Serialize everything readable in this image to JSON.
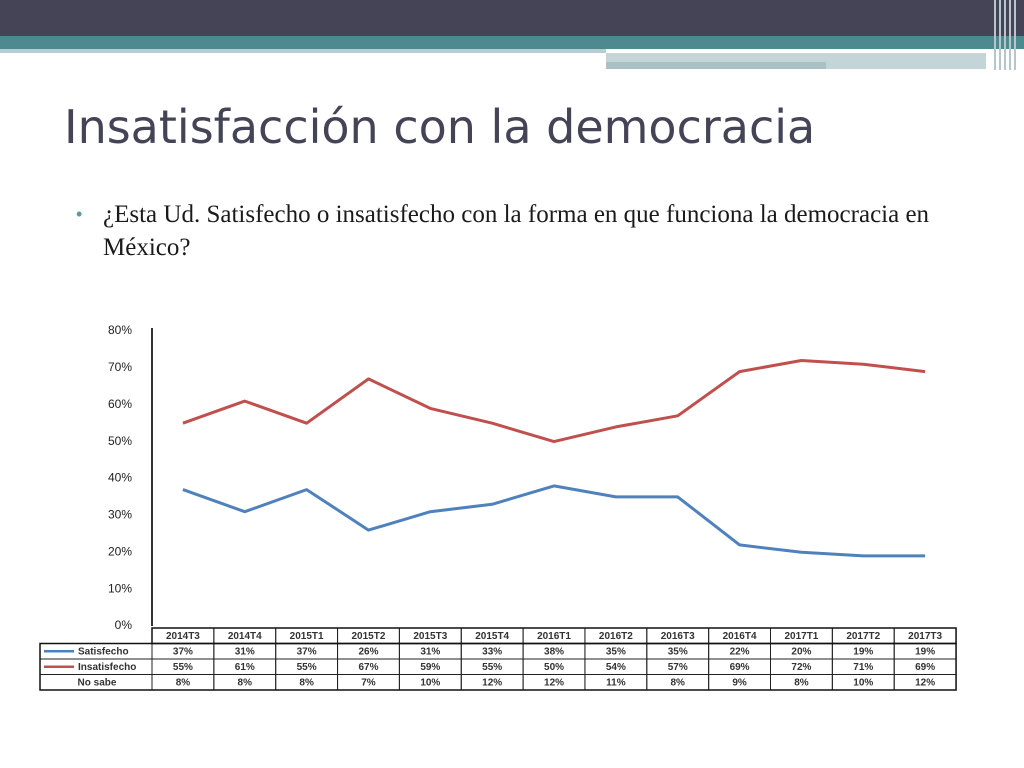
{
  "slide": {
    "title": "Insatisfacción con la democracia",
    "bullet_symbol": "•",
    "bullet": "¿Esta Ud. Satisfecho o insatisfecho con la forma en que funciona la democracia en México?"
  },
  "colors": {
    "header_dark": "#454457",
    "header_teal": "#4d8a8f",
    "satisfecho": "#4f81bd",
    "insatisfecho": "#c0504d"
  },
  "chart_data": {
    "type": "line",
    "categories": [
      "2014T3",
      "2014T4",
      "2015T1",
      "2015T2",
      "2015T3",
      "2015T4",
      "2016T1",
      "2016T2",
      "2016T3",
      "2016T4",
      "2017T1",
      "2017T2",
      "2017T3"
    ],
    "y_ticks": [
      "0%",
      "10%",
      "20%",
      "30%",
      "40%",
      "50%",
      "60%",
      "70%",
      "80%"
    ],
    "ylim": [
      0,
      80
    ],
    "grid": false,
    "series": [
      {
        "name": "Satisfecho",
        "color": "#4f81bd",
        "plotted": true,
        "values": [
          37,
          31,
          37,
          26,
          31,
          33,
          38,
          35,
          35,
          22,
          20,
          19,
          19
        ],
        "labels": [
          "37%",
          "31%",
          "37%",
          "26%",
          "31%",
          "33%",
          "38%",
          "35%",
          "35%",
          "22%",
          "20%",
          "19%",
          "19%"
        ]
      },
      {
        "name": "Insatisfecho",
        "color": "#c0504d",
        "plotted": true,
        "values": [
          55,
          61,
          55,
          67,
          59,
          55,
          50,
          54,
          57,
          69,
          72,
          71,
          69
        ],
        "labels": [
          "55%",
          "61%",
          "55%",
          "67%",
          "59%",
          "55%",
          "50%",
          "54%",
          "57%",
          "69%",
          "72%",
          "71%",
          "69%"
        ]
      },
      {
        "name": "No sabe",
        "color": "",
        "plotted": false,
        "values": [
          8,
          8,
          8,
          7,
          10,
          12,
          12,
          11,
          8,
          9,
          8,
          10,
          12
        ],
        "labels": [
          "8%",
          "8%",
          "8%",
          "7%",
          "10%",
          "12%",
          "12%",
          "11%",
          "8%",
          "9%",
          "8%",
          "10%",
          "12%"
        ]
      }
    ]
  }
}
